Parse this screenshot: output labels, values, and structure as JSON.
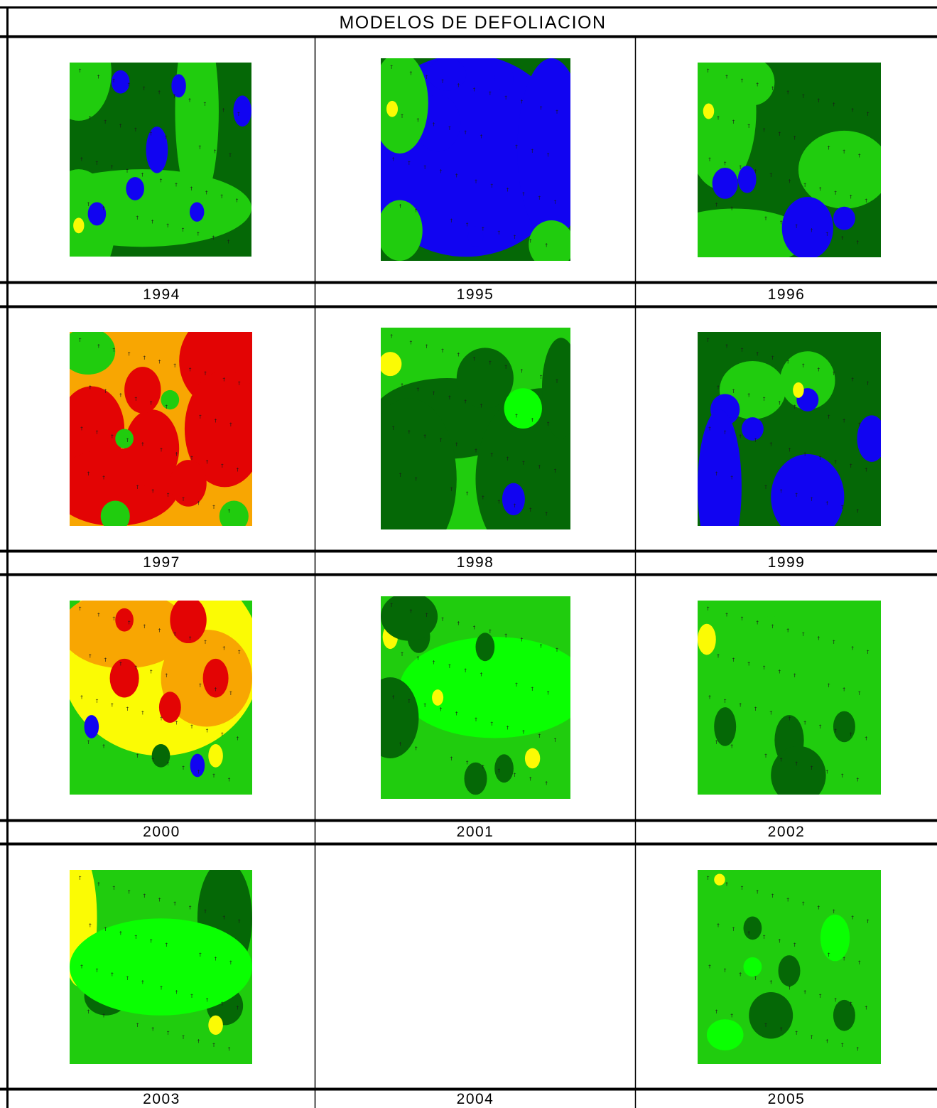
{
  "title": "MODELOS DE DEFOLIACION",
  "colors": {
    "dark_green": "#056806",
    "mid_green": "#20cc0e",
    "light_green": "#0aff02",
    "yellow": "#fbfb04",
    "orange": "#f8a602",
    "red": "#e30404",
    "blue": "#1104f1"
  },
  "panels": [
    {
      "year": "1994",
      "has_map": true,
      "base": "dark_green"
    },
    {
      "year": "1995",
      "has_map": true,
      "base": "dark_green"
    },
    {
      "year": "1996",
      "has_map": true,
      "base": "dark_green"
    },
    {
      "year": "1997",
      "has_map": true,
      "base": "orange"
    },
    {
      "year": "1998",
      "has_map": true,
      "base": "mid_green"
    },
    {
      "year": "1999",
      "has_map": true,
      "base": "dark_green"
    },
    {
      "year": "2000",
      "has_map": true,
      "base": "mid_green"
    },
    {
      "year": "2001",
      "has_map": true,
      "base": "mid_green"
    },
    {
      "year": "2002",
      "has_map": true,
      "base": "mid_green"
    },
    {
      "year": "2003",
      "has_map": true,
      "base": "mid_green"
    },
    {
      "year": "2004",
      "has_map": false,
      "base": ""
    },
    {
      "year": "2005",
      "has_map": true,
      "base": "mid_green"
    }
  ]
}
